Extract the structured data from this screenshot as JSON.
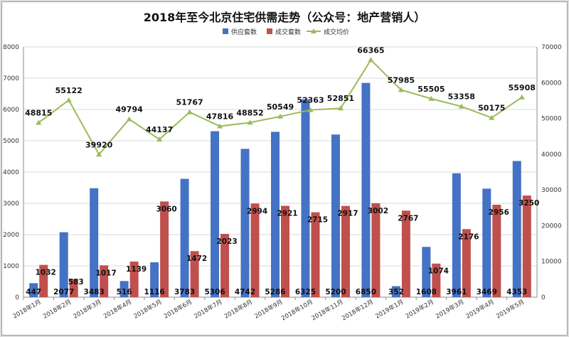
{
  "chart_data": {
    "type": "bar+line",
    "title": "2018年至今北京住宅供需走势（公众号：地产营销人）",
    "categories": [
      "2018年1月",
      "2018年2月",
      "2018年3月",
      "2018年4月",
      "2018年5月",
      "2018年6月",
      "2018年7月",
      "2018年8月",
      "2018年9月",
      "2018年10月",
      "2018年11月",
      "2018年12月",
      "2019年1月",
      "2019年2月",
      "2019年3月",
      "2019年4月",
      "2019年5月"
    ],
    "series": [
      {
        "name": "供应套数",
        "type": "bar",
        "axis": "left",
        "color": "#4472c4",
        "values": [
          447,
          2077,
          3483,
          516,
          1116,
          3783,
          5306,
          4742,
          5286,
          6325,
          5200,
          6850,
          352,
          1608,
          3961,
          3469,
          4353
        ]
      },
      {
        "name": "成交套数",
        "type": "bar",
        "axis": "left",
        "color": "#c0504d",
        "values": [
          1032,
          583,
          1017,
          1139,
          3060,
          1472,
          2023,
          2994,
          2921,
          2715,
          2917,
          3002,
          2767,
          1074,
          2176,
          2956,
          3250
        ]
      },
      {
        "name": "成交均价",
        "type": "line",
        "axis": "right",
        "color": "#9bbb59",
        "values": [
          48815,
          55122,
          39920,
          49794,
          44137,
          51767,
          47816,
          48852,
          50549,
          52363,
          52851,
          66365,
          57985,
          55505,
          53358,
          50175,
          55908
        ]
      }
    ],
    "ylim": [
      0,
      8000
    ],
    "y_ticks": [
      0,
      1000,
      2000,
      3000,
      4000,
      5000,
      6000,
      7000,
      8000
    ],
    "y2lim": [
      0,
      70000
    ],
    "y2_ticks": [
      0,
      10000,
      20000,
      30000,
      40000,
      50000,
      60000,
      70000
    ],
    "legend_position": "top"
  }
}
